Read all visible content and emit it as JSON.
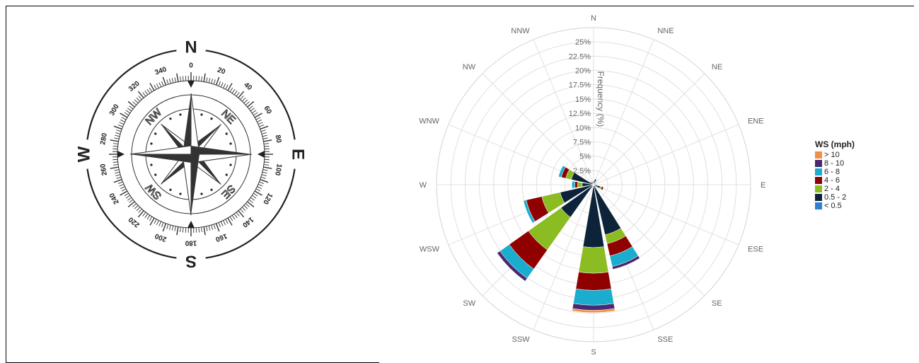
{
  "compass": {
    "cardinals": [
      "N",
      "E",
      "S",
      "W"
    ],
    "intercardinals": [
      "NE",
      "SE",
      "SW",
      "NW"
    ],
    "degree_labels": [
      "0",
      "20",
      "40",
      "60",
      "80",
      "100",
      "120",
      "140",
      "160",
      "180",
      "200",
      "220",
      "240",
      "260",
      "280",
      "300",
      "320",
      "340"
    ]
  },
  "chart_data": {
    "type": "wind-rose",
    "directions": [
      "N",
      "NNE",
      "NE",
      "ENE",
      "E",
      "ESE",
      "SE",
      "SSE",
      "S",
      "SSW",
      "SW",
      "WSW",
      "W",
      "WNW",
      "NW",
      "NNW"
    ],
    "radial_ticks": [
      "2.5%",
      "5%",
      "7.5%",
      "10%",
      "12.5%",
      "15%",
      "17.5%",
      "20%",
      "22.5%",
      "25%"
    ],
    "rmax": 27.5,
    "radial_axis_label": "Frequency (%)",
    "legend_title": "WS (mph)",
    "bins": [
      {
        "name": "< 0.5",
        "color": "#2f7ed8"
      },
      {
        "name": "0.5 - 2",
        "color": "#0d233a"
      },
      {
        "name": "2 - 4",
        "color": "#8bbc21"
      },
      {
        "name": "4 - 6",
        "color": "#910000"
      },
      {
        "name": "6 - 8",
        "color": "#1aadce"
      },
      {
        "name": "8 - 10",
        "color": "#492970"
      },
      {
        "name": "> 10",
        "color": "#f28f43"
      }
    ],
    "values": {
      "N": [
        0,
        0.6,
        0,
        0,
        0,
        0,
        0
      ],
      "NNE": [
        0,
        1.0,
        0,
        0,
        0,
        0,
        0
      ],
      "NE": [
        0,
        0.3,
        0,
        0,
        0,
        0,
        0
      ],
      "ENE": [
        0,
        0.3,
        0,
        0,
        0,
        0,
        0
      ],
      "E": [
        0,
        0.5,
        0,
        0,
        0,
        0,
        0
      ],
      "ESE": [
        0,
        1.2,
        0.3,
        0.3,
        0,
        0,
        0
      ],
      "SE": [
        0,
        0.5,
        0,
        0,
        0,
        0,
        0
      ],
      "SSE": [
        0,
        9.0,
        1.6,
        2.2,
        1.9,
        0.5,
        0
      ],
      "S": [
        0,
        11.0,
        4.5,
        3.0,
        2.6,
        0.9,
        0.4
      ],
      "SSW": [
        0,
        0,
        0,
        0,
        0,
        0,
        0
      ],
      "SW": [
        0,
        7.0,
        7.0,
        4.1,
        2.0,
        0.6,
        0
      ],
      "WSW": [
        0,
        6.0,
        3.3,
        2.8,
        0.5,
        0,
        0
      ],
      "W": [
        0,
        2.0,
        0.8,
        0.5,
        0.5,
        0,
        0
      ],
      "WNW": [
        0,
        4.0,
        1.0,
        0.8,
        0.5,
        0,
        0
      ],
      "NW": [
        0,
        0.6,
        0,
        0,
        0,
        0,
        0
      ],
      "NNW": [
        0,
        0.5,
        0,
        0,
        0,
        0,
        0
      ]
    },
    "grid": true,
    "legend_position": "right"
  }
}
